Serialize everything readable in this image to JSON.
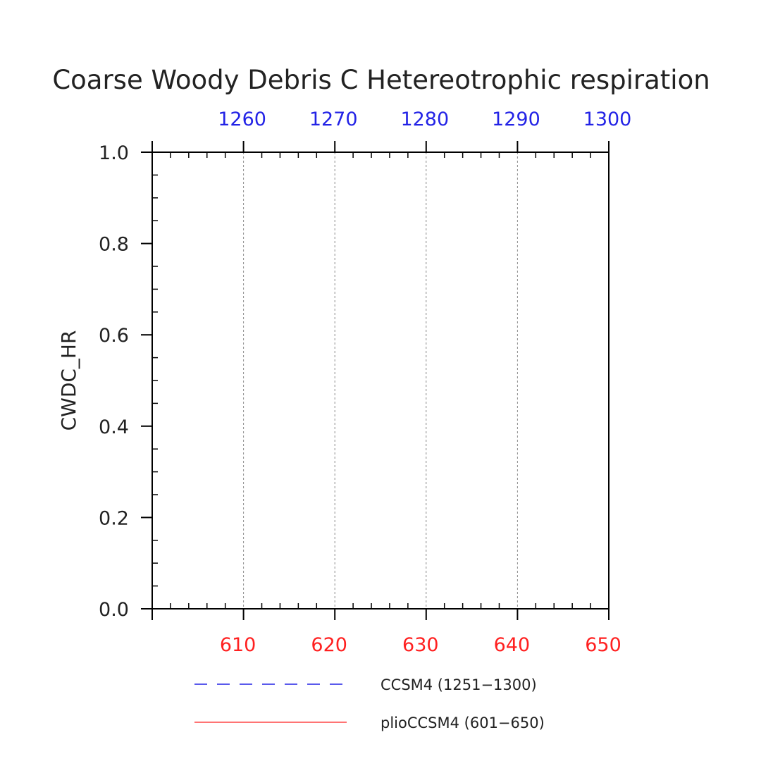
{
  "chart_data": {
    "type": "line",
    "title": "Coarse Woody Debris C Hetereotrophic respiration",
    "ylabel": "CWDC_HR",
    "xlabel": "",
    "ylim": [
      0,
      1
    ],
    "yticks": [
      0.0,
      0.2,
      0.4,
      0.6,
      0.8,
      1.0
    ],
    "ytick_labels": [
      "0.0",
      "0.2",
      "0.4",
      "0.6",
      "0.8",
      "1.0"
    ],
    "x_bottom": {
      "range": [
        600,
        650
      ],
      "ticks": [
        610,
        620,
        630,
        640,
        650
      ],
      "tick_labels": [
        "610",
        "620",
        "630",
        "640",
        "650"
      ],
      "color": "#ff2020"
    },
    "x_top": {
      "range": [
        1250,
        1300
      ],
      "ticks": [
        1260,
        1270,
        1280,
        1290,
        1300
      ],
      "tick_labels": [
        "1260",
        "1270",
        "1280",
        "1290",
        "1300"
      ],
      "color": "#2323e6"
    },
    "grid": "vertical dashed at major x ticks",
    "series": [
      {
        "name": "CCSM4 (1251−1300)",
        "color": "#2323e6",
        "style": "dashed",
        "axis": "top",
        "x": [],
        "y": []
      },
      {
        "name": "plioCCSM4 (601−650)",
        "color": "#ff2020",
        "style": "solid",
        "axis": "bottom",
        "x": [],
        "y": []
      }
    ],
    "legend_position": "bottom"
  }
}
